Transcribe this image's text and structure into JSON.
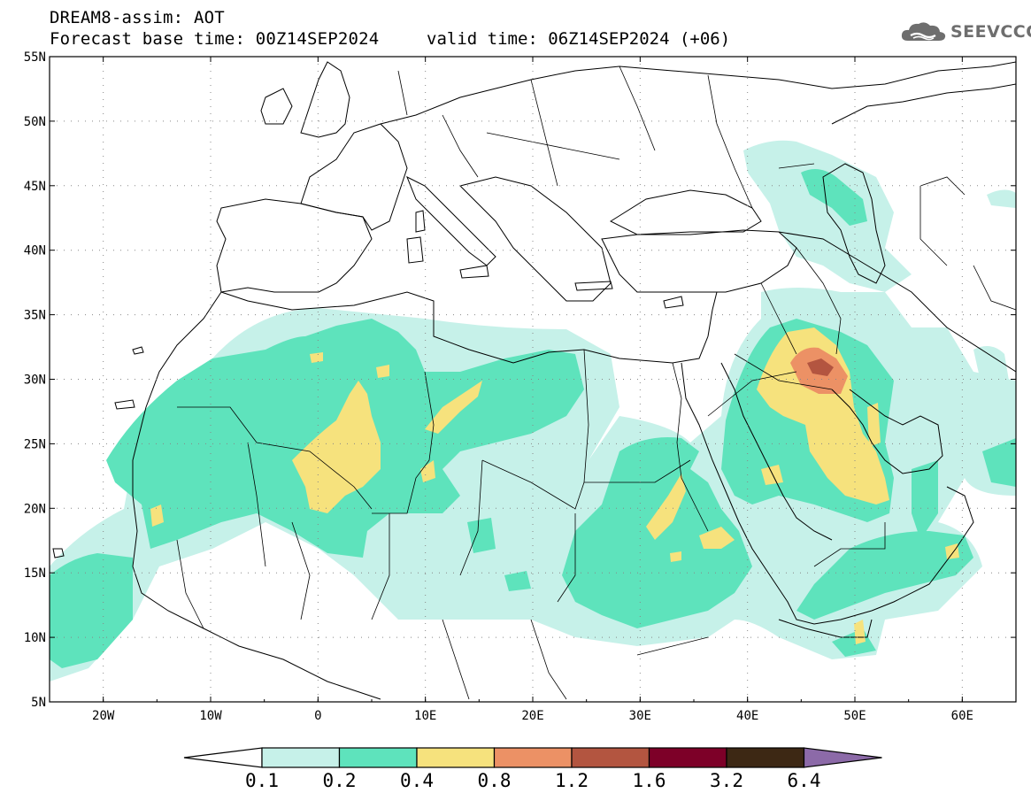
{
  "header": {
    "title": "DREAM8-assim: AOT",
    "base_time": "Forecast base time: 00Z14SEP2024",
    "valid_time": "valid time: 06Z14SEP2024 (+06)",
    "logo_text": "SEEVCCC"
  },
  "map": {
    "lon_range": [
      -25,
      65
    ],
    "lat_range": [
      5,
      55
    ],
    "lat_labels": [
      "55N",
      "50N",
      "45N",
      "40N",
      "35N",
      "30N",
      "25N",
      "20N",
      "15N",
      "10N",
      "5N"
    ],
    "lon_labels": [
      "20W",
      "10W",
      "0",
      "10E",
      "20E",
      "30E",
      "40E",
      "50E",
      "60E"
    ],
    "grid": "dotted"
  },
  "legend": {
    "labels": [
      "0.1",
      "0.2",
      "0.4",
      "0.8",
      "1.2",
      "1.6",
      "3.2",
      "6.4"
    ],
    "colors": [
      "#ffffff",
      "#c6f1e9",
      "#5ee3bc",
      "#f6e27d",
      "#ec9165",
      "#b35540",
      "#7d0028",
      "#3d2814",
      "#8c6aa8"
    ]
  },
  "palette": {
    "aot_01_02": "#c6f1e9",
    "aot_02_04": "#5ee3bc",
    "aot_04_08": "#f6e27d",
    "aot_08_12": "#ec9165",
    "aot_12_16": "#b35540"
  }
}
